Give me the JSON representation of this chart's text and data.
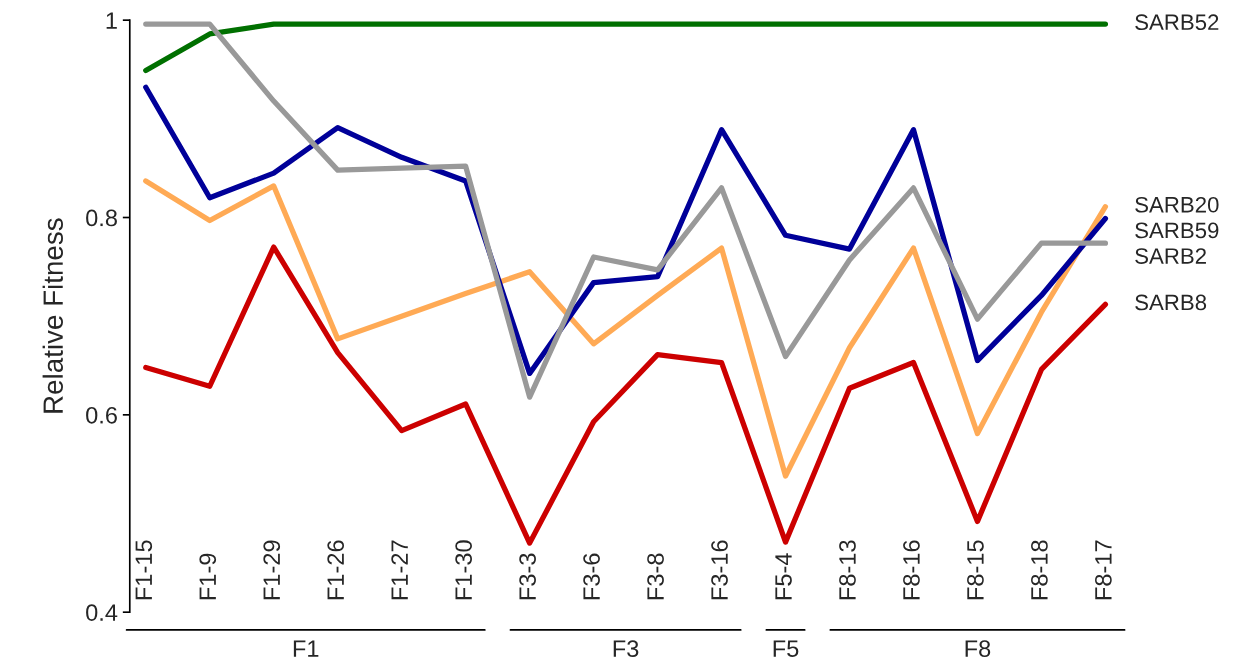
{
  "chart_data": {
    "type": "line",
    "ylabel": "Relative Fitness",
    "categories": [
      "F1-15",
      "F1-9",
      "F1-29",
      "F1-26",
      "F1-27",
      "F1-30",
      "F3-3",
      "F3-6",
      "F3-8",
      "F3-16",
      "F5-4",
      "F8-13",
      "F8-16",
      "F8-15",
      "F8-18",
      "F8-17"
    ],
    "series": [
      {
        "name": "SARB52",
        "color": "#007000",
        "values": [
          0.949,
          0.986,
          0.996,
          0.996,
          0.996,
          0.996,
          0.996,
          0.996,
          0.996,
          0.996,
          0.996,
          0.996,
          0.996,
          0.996,
          0.996,
          0.996
        ]
      },
      {
        "name": "SARB20",
        "color": "#ffaa55",
        "values": [
          0.837,
          0.797,
          0.832,
          0.677,
          0.7,
          0.723,
          0.745,
          0.672,
          0.721,
          0.769,
          0.538,
          0.668,
          0.769,
          0.581,
          0.704,
          0.811
        ]
      },
      {
        "name": "SARB59",
        "color": "#000099",
        "values": [
          0.932,
          0.82,
          0.845,
          0.891,
          0.861,
          0.837,
          0.642,
          0.734,
          0.74,
          0.889,
          0.782,
          0.768,
          0.889,
          0.655,
          0.721,
          0.799
        ]
      },
      {
        "name": "SARB2",
        "color": "#999999",
        "values": [
          0.996,
          0.996,
          0.918,
          0.848,
          0.85,
          0.852,
          0.618,
          0.76,
          0.747,
          0.83,
          0.659,
          0.757,
          0.83,
          0.697,
          0.774,
          0.774
        ]
      },
      {
        "name": "SARB8",
        "color": "#cc0000",
        "values": [
          0.648,
          0.629,
          0.77,
          0.663,
          0.584,
          0.611,
          0.47,
          0.593,
          0.661,
          0.653,
          0.471,
          0.627,
          0.653,
          0.492,
          0.646,
          0.712
        ]
      }
    ],
    "ylim": [
      0.4,
      1
    ],
    "yticks": [
      0.4,
      0.6,
      0.8,
      1
    ],
    "grid": false,
    "legend": false,
    "marker": "none",
    "line_style": "solid",
    "annotations": [
      "F1",
      "F3",
      "F5",
      "F8"
    ]
  }
}
